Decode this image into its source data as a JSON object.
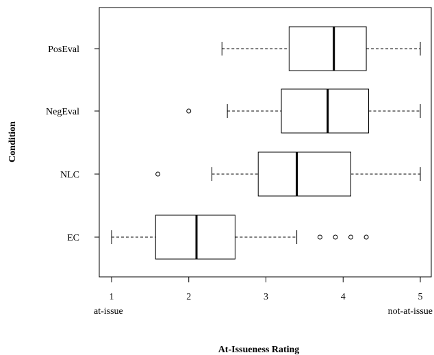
{
  "chart_data": {
    "type": "boxplot",
    "orientation": "horizontal",
    "title": "",
    "xlabel": "At-Issueness Rating",
    "ylabel": "Condition",
    "xlim": [
      1,
      5
    ],
    "x_ticks": [
      1,
      2,
      3,
      4,
      5
    ],
    "x_end_labels": {
      "low": "at-issue",
      "high": "not-at-issue"
    },
    "grid": false,
    "categories": [
      "PosEval",
      "NegEval",
      "NLC",
      "EC"
    ],
    "boxes": [
      {
        "label": "PosEval",
        "whisker_low": 2.43,
        "q1": 3.3,
        "median": 3.88,
        "q3": 4.3,
        "whisker_high": 5.0,
        "outliers": []
      },
      {
        "label": "NegEval",
        "whisker_low": 2.5,
        "q1": 3.2,
        "median": 3.8,
        "q3": 4.33,
        "whisker_high": 5.0,
        "outliers": [
          2.0
        ]
      },
      {
        "label": "NLC",
        "whisker_low": 2.3,
        "q1": 2.9,
        "median": 3.4,
        "q3": 4.1,
        "whisker_high": 5.0,
        "outliers": [
          1.6
        ]
      },
      {
        "label": "EC",
        "whisker_low": 1.0,
        "q1": 1.57,
        "median": 2.1,
        "q3": 2.6,
        "whisker_high": 3.4,
        "outliers": [
          3.7,
          3.9,
          4.1,
          4.3
        ]
      }
    ]
  }
}
